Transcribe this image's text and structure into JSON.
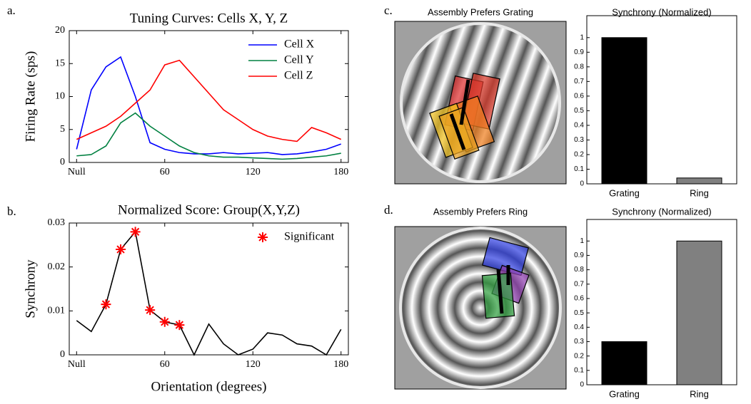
{
  "panel_labels": [
    "a.",
    "b.",
    "c.",
    "d."
  ],
  "stimuli": [
    {
      "title": "Assembly Prefers Grating"
    },
    {
      "title": "Assembly Prefers Ring"
    }
  ],
  "chart_data": [
    {
      "type": "line",
      "title": "Tuning Curves: Cells X, Y, Z",
      "ylabel": "Firing Rate (sps)",
      "x": [
        0,
        10,
        20,
        30,
        40,
        50,
        60,
        70,
        80,
        90,
        100,
        110,
        120,
        130,
        140,
        150,
        160,
        170,
        180
      ],
      "xlim": [
        -5,
        185
      ],
      "xticks": [
        {
          "value": 0,
          "label": "Null"
        },
        60,
        120,
        180
      ],
      "ylim": [
        0,
        20
      ],
      "yticks": [
        0,
        5,
        10,
        15,
        20
      ],
      "legend": "upper right",
      "series": [
        {
          "name": "Cell X",
          "color": "#0000ff",
          "values": [
            2,
            11,
            14.5,
            16,
            10,
            3,
            2,
            1.5,
            1.3,
            1.3,
            1.5,
            1.3,
            1.4,
            1.5,
            1.2,
            1.3,
            1.6,
            2,
            2.8
          ]
        },
        {
          "name": "Cell Y",
          "color": "#008040",
          "values": [
            1,
            1.2,
            2.5,
            6,
            7.5,
            5.5,
            4,
            2.5,
            1.5,
            1,
            0.8,
            0.8,
            0.7,
            0.6,
            0.5,
            0.6,
            0.8,
            1,
            1.4
          ]
        },
        {
          "name": "Cell Z",
          "color": "#ff0000",
          "values": [
            3.5,
            4.5,
            5.5,
            7,
            9,
            11,
            14.8,
            15.5,
            13,
            10.5,
            8,
            6.5,
            5,
            4,
            3.5,
            3.2,
            5.3,
            4.5,
            3.5
          ]
        }
      ]
    },
    {
      "type": "line",
      "title": "Normalized Score: Group(X,Y,Z)",
      "xlabel": "Orientation (degrees)",
      "ylabel": "Synchrony",
      "x": [
        0,
        10,
        20,
        30,
        40,
        50,
        60,
        70,
        80,
        90,
        100,
        110,
        120,
        130,
        140,
        150,
        160,
        170,
        180
      ],
      "xlim": [
        -5,
        185
      ],
      "xticks": [
        {
          "value": 0,
          "label": "Null"
        },
        60,
        120,
        180
      ],
      "ylim": [
        0,
        0.03
      ],
      "yticks": [
        0,
        0.01,
        0.02,
        0.03
      ],
      "legend": "upper right",
      "series": [
        {
          "color": "#000000",
          "values": [
            0.0078,
            0.0053,
            0.0115,
            0.024,
            0.028,
            0.0102,
            0.0075,
            0.0068,
            0,
            0.007,
            0.0025,
            0,
            0.0013,
            0.005,
            0.0045,
            0.0025,
            0.002,
            0,
            0.0058
          ]
        },
        {
          "name": "Significant",
          "color": "#ff0000",
          "marker": "star",
          "x": [
            20,
            30,
            40,
            50,
            60,
            70
          ],
          "values": [
            0.0115,
            0.024,
            0.028,
            0.0102,
            0.0075,
            0.0068
          ]
        }
      ]
    },
    {
      "type": "bar",
      "title": "Synchrony (Normalized)",
      "categories": [
        "Grating",
        "Ring"
      ],
      "values": [
        1,
        0.04
      ],
      "colors": [
        "#000000",
        "#808080"
      ],
      "ylim": [
        0,
        1.15
      ],
      "yticks": [
        0,
        0.1,
        0.2,
        0.3,
        0.4,
        0.5,
        0.6,
        0.7,
        0.8,
        0.9,
        1
      ]
    },
    {
      "type": "bar",
      "title": "Synchrony (Normalized)",
      "categories": [
        "Grating",
        "Ring"
      ],
      "values": [
        0.3,
        1
      ],
      "colors": [
        "#000000",
        "#808080"
      ],
      "ylim": [
        0,
        1.15
      ],
      "yticks": [
        0,
        0.1,
        0.2,
        0.3,
        0.4,
        0.5,
        0.6,
        0.7,
        0.8,
        0.9,
        1
      ]
    }
  ]
}
